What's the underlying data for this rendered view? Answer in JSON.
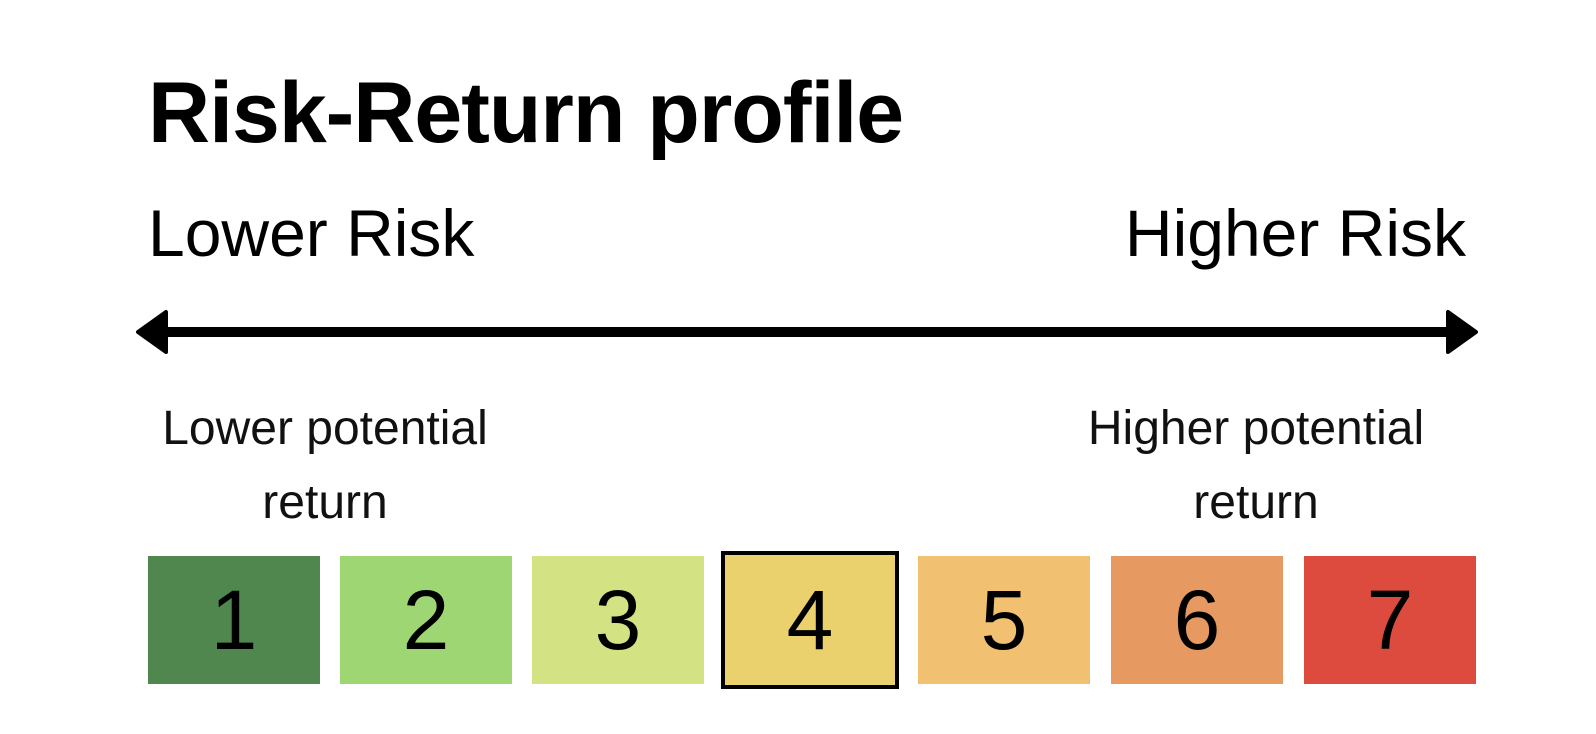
{
  "title": "Risk-Return profile",
  "risk": {
    "lower_label": "Lower Risk",
    "higher_label": "Higher Risk"
  },
  "return": {
    "lower_line1": "Lower potential",
    "lower_line2": "return",
    "higher_line1": "Higher potential",
    "higher_line2": "return"
  },
  "scale": {
    "selected": "4",
    "levels": [
      {
        "label": "1",
        "color": "#50874f"
      },
      {
        "label": "2",
        "color": "#9ed673"
      },
      {
        "label": "3",
        "color": "#d3e282"
      },
      {
        "label": "4",
        "color": "#ead16e"
      },
      {
        "label": "5",
        "color": "#f1c070"
      },
      {
        "label": "6",
        "color": "#e69a62"
      },
      {
        "label": "7",
        "color": "#dd4b3f"
      }
    ]
  }
}
